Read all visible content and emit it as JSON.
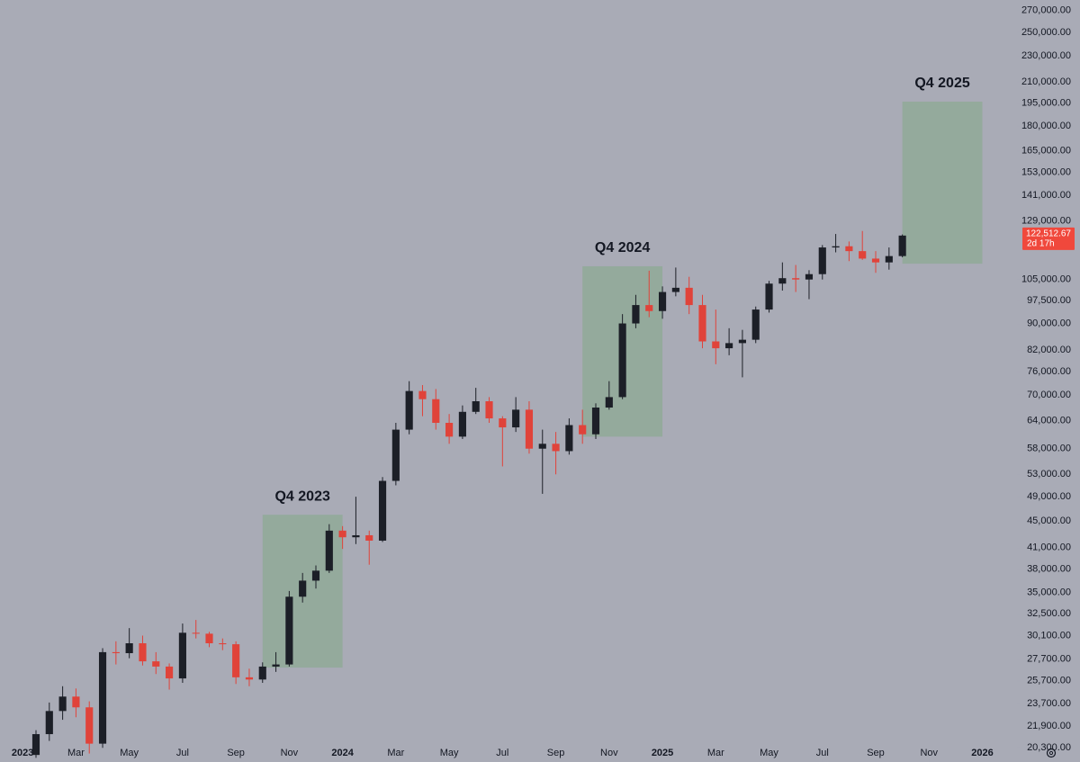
{
  "chart_data": {
    "type": "candlestick",
    "log_y": true,
    "up_color": "#1c1f27",
    "down_color": "#e0433a",
    "x": [
      0.5,
      1,
      1.5,
      2,
      2.5,
      3,
      3.5,
      4,
      4.5,
      5,
      5.5,
      6,
      6.5,
      7,
      7.5,
      8,
      8.5,
      9,
      9.5,
      10,
      10.5,
      11,
      11.5,
      12,
      12.5,
      13,
      13.5,
      14,
      14.5,
      15,
      15.5,
      16,
      16.5,
      17,
      17.5,
      18,
      18.5,
      19,
      19.5,
      20,
      20.5,
      21,
      21.5,
      22,
      22.5,
      23,
      23.5,
      24,
      24.5,
      25,
      25.5,
      26,
      26.5,
      27,
      27.5,
      28,
      28.5,
      29,
      29.5,
      30,
      30.5,
      31,
      31.5,
      32,
      32.5,
      33
    ],
    "open": [
      19800,
      21300,
      23100,
      24300,
      23400,
      20600,
      28400,
      28300,
      29300,
      27500,
      27000,
      25900,
      30400,
      30300,
      29300,
      29200,
      26000,
      25800,
      27000,
      27200,
      34500,
      36500,
      37800,
      43500,
      42500,
      42800,
      42000,
      51800,
      62000,
      71000,
      69000,
      63500,
      60500,
      66000,
      68500,
      64500,
      62500,
      66500,
      58000,
      59000,
      57500,
      63000,
      61000,
      67000,
      69500,
      90000,
      96000,
      94000,
      100500,
      102000,
      96000,
      84500,
      82500,
      84000,
      85000,
      94500,
      103500,
      105500,
      105000,
      107000,
      117500,
      118000,
      116000,
      113000,
      111500,
      114000
    ],
    "high": [
      21600,
      23800,
      25200,
      25000,
      23900,
      28800,
      29500,
      30900,
      30100,
      28400,
      27300,
      31400,
      31800,
      30500,
      29800,
      29500,
      26800,
      27400,
      28400,
      35200,
      37500,
      38500,
      44500,
      44200,
      49000,
      43500,
      52500,
      63500,
      73500,
      72500,
      71500,
      65500,
      67500,
      71800,
      69500,
      65000,
      69500,
      68500,
      62000,
      61500,
      64500,
      66500,
      68000,
      73500,
      93000,
      99500,
      108300,
      102500,
      109500,
      106000,
      99500,
      94500,
      88500,
      88000,
      95500,
      104500,
      111500,
      110500,
      108500,
      118500,
      123200,
      120000,
      124500,
      116000,
      117500,
      123000
    ],
    "low": [
      19600,
      20800,
      22400,
      22600,
      19900,
      20300,
      27200,
      27800,
      27100,
      26300,
      24900,
      25500,
      29800,
      28900,
      28600,
      25400,
      25200,
      25500,
      26500,
      27000,
      33800,
      35500,
      37500,
      40800,
      41500,
      38600,
      41800,
      51000,
      61000,
      65000,
      62000,
      59000,
      60000,
      65500,
      63500,
      54500,
      61500,
      57000,
      49500,
      53000,
      56800,
      59000,
      60000,
      66500,
      69000,
      88500,
      92000,
      91500,
      99000,
      93000,
      82500,
      78000,
      80500,
      74500,
      84000,
      93500,
      101000,
      100500,
      98000,
      105000,
      115500,
      112000,
      112500,
      107500,
      108700,
      113500
    ],
    "close": [
      21300,
      23100,
      24300,
      23400,
      20600,
      28400,
      28300,
      29300,
      27500,
      27000,
      25900,
      30400,
      30300,
      29300,
      29200,
      26000,
      25800,
      27000,
      27200,
      34500,
      36500,
      37800,
      43500,
      42500,
      42800,
      42000,
      51800,
      62000,
      71000,
      69000,
      63500,
      60500,
      66000,
      68500,
      64500,
      62500,
      66500,
      58000,
      59000,
      57500,
      63000,
      61000,
      67000,
      69500,
      90000,
      96000,
      94000,
      100500,
      102000,
      96000,
      84500,
      82500,
      84000,
      85000,
      94500,
      103500,
      105500,
      105000,
      107000,
      117500,
      118000,
      116000,
      113000,
      111500,
      114000,
      122512.67
    ],
    "xlim": [
      -0.85,
      37.3
    ],
    "xticks": [
      {
        "value": 0,
        "label": "2023"
      },
      {
        "value": 2,
        "label": "Mar"
      },
      {
        "value": 4,
        "label": "May"
      },
      {
        "value": 6,
        "label": "Jul"
      },
      {
        "value": 8,
        "label": "Sep"
      },
      {
        "value": 10,
        "label": "Nov"
      },
      {
        "value": 12,
        "label": "2024"
      },
      {
        "value": 14,
        "label": "Mar"
      },
      {
        "value": 16,
        "label": "May"
      },
      {
        "value": 18,
        "label": "Jul"
      },
      {
        "value": 20,
        "label": "Sep"
      },
      {
        "value": 22,
        "label": "Nov"
      },
      {
        "value": 24,
        "label": "2025"
      },
      {
        "value": 26,
        "label": "Mar"
      },
      {
        "value": 28,
        "label": "May"
      },
      {
        "value": 30,
        "label": "Jul"
      },
      {
        "value": 32,
        "label": "Sep"
      },
      {
        "value": 34,
        "label": "Nov"
      },
      {
        "value": 36,
        "label": "2026"
      }
    ],
    "ylim": [
      19500,
      280000
    ],
    "yticks": [
      {
        "value": 270000,
        "label": "270,000.00"
      },
      {
        "value": 250000,
        "label": "250,000.00"
      },
      {
        "value": 230000,
        "label": "230,000.00"
      },
      {
        "value": 210000,
        "label": "210,000.00"
      },
      {
        "value": 195000,
        "label": "195,000.00"
      },
      {
        "value": 180000,
        "label": "180,000.00"
      },
      {
        "value": 165000,
        "label": "165,000.00"
      },
      {
        "value": 153000,
        "label": "153,000.00"
      },
      {
        "value": 141000,
        "label": "141,000.00"
      },
      {
        "value": 129000,
        "label": "129,000.00"
      },
      {
        "value": 105000,
        "label": "105,000.00"
      },
      {
        "value": 97500,
        "label": "97,500.00"
      },
      {
        "value": 90000,
        "label": "90,000.00"
      },
      {
        "value": 82000,
        "label": "82,000.00"
      },
      {
        "value": 76000,
        "label": "76,000.00"
      },
      {
        "value": 70000,
        "label": "70,000.00"
      },
      {
        "value": 64000,
        "label": "64,000.00"
      },
      {
        "value": 58000,
        "label": "58,000.00"
      },
      {
        "value": 53000,
        "label": "53,000.00"
      },
      {
        "value": 49000,
        "label": "49,000.00"
      },
      {
        "value": 45000,
        "label": "45,000.00"
      },
      {
        "value": 41000,
        "label": "41,000.00"
      },
      {
        "value": 38000,
        "label": "38,000.00"
      },
      {
        "value": 35000,
        "label": "35,000.00"
      },
      {
        "value": 32500,
        "label": "32,500.00"
      },
      {
        "value": 30100,
        "label": "30,100.00"
      },
      {
        "value": 27700,
        "label": "27,700.00"
      },
      {
        "value": 25700,
        "label": "25,700.00"
      },
      {
        "value": 23700,
        "label": "23,700.00"
      },
      {
        "value": 21900,
        "label": "21,900.00"
      },
      {
        "value": 20300,
        "label": "20,300.00"
      }
    ],
    "last_price": {
      "value": 122512.67,
      "label": "122,512.67"
    },
    "countdown": "2d 17h",
    "last_price_color": "#f0483c",
    "annotations": [
      {
        "label": "Q4 2023",
        "x": [
          9,
          12
        ],
        "y": [
          26900,
          46000
        ]
      },
      {
        "label": "Q4 2024",
        "x": [
          21,
          24
        ],
        "y": [
          60500,
          110000
        ]
      },
      {
        "label": "Q4 2025",
        "x": [
          33,
          36
        ],
        "y": [
          111000,
          196000
        ]
      }
    ]
  }
}
